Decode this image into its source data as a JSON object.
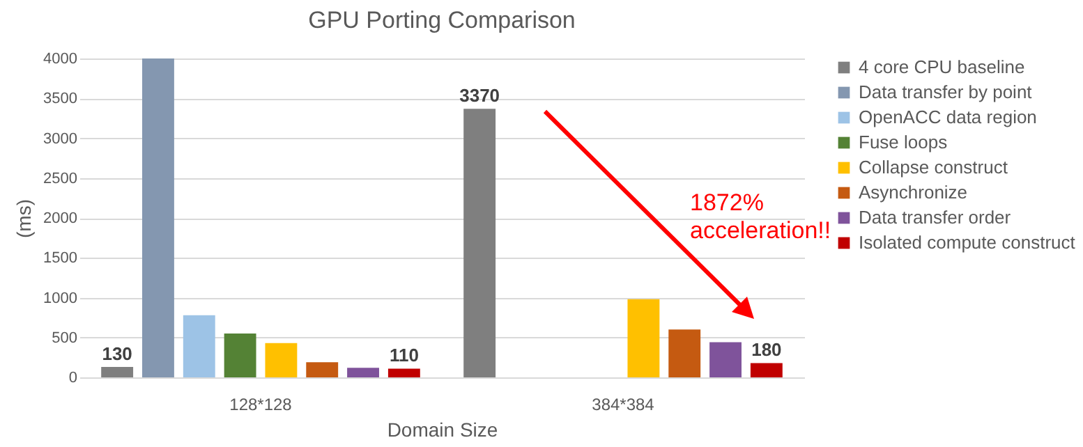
{
  "chart_data": {
    "type": "bar",
    "title": "GPU Porting Comparison",
    "xlabel": "Domain Size",
    "ylabel": "(ms)",
    "categories": [
      "128*128",
      "384*384"
    ],
    "series": [
      {
        "name": "4 core CPU baseline",
        "color": "#7f7f7f",
        "values": [
          130,
          3370
        ],
        "value_labels": [
          "130",
          "3370"
        ]
      },
      {
        "name": "Data transfer by point",
        "color": "#8497b0",
        "values": [
          4000,
          null
        ]
      },
      {
        "name": "OpenACC data region",
        "color": "#9dc3e6",
        "values": [
          780,
          null
        ]
      },
      {
        "name": "Fuse loops",
        "color": "#548235",
        "values": [
          550,
          null
        ]
      },
      {
        "name": "Collapse construct",
        "color": "#ffc000",
        "values": [
          430,
          980
        ]
      },
      {
        "name": "Asynchronize",
        "color": "#c55a11",
        "values": [
          190,
          600
        ]
      },
      {
        "name": "Data transfer order",
        "color": "#7f539b",
        "values": [
          120,
          440
        ]
      },
      {
        "name": "Isolated compute construct",
        "color": "#c00000",
        "values": [
          110,
          180
        ],
        "value_labels": [
          "110",
          "180"
        ]
      }
    ],
    "ylim": [
      0,
      4000
    ],
    "yticks": [
      0,
      500,
      1000,
      1500,
      2000,
      2500,
      3000,
      3500,
      4000
    ],
    "grid": "y",
    "legend": "right",
    "annotations": [
      "1872%\nacceleration!!"
    ]
  }
}
